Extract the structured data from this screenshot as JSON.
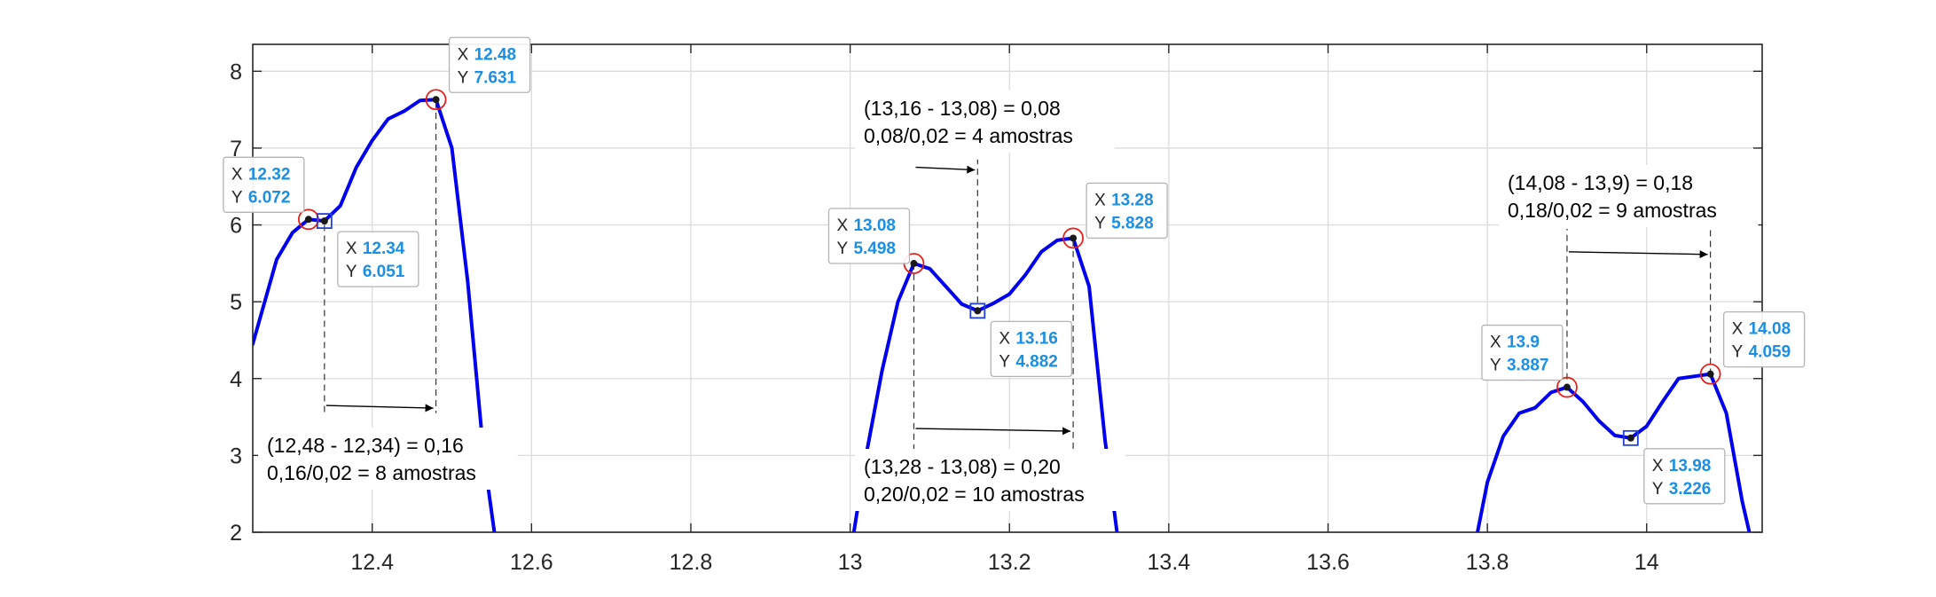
{
  "chart_data": {
    "type": "line",
    "title": "",
    "xlabel": "",
    "ylabel": "",
    "xlim": [
      12.25,
      14.145
    ],
    "ylim": [
      2,
      8.35
    ],
    "grid": true,
    "x_ticks": [
      12.4,
      12.6,
      12.8,
      13,
      13.2,
      13.4,
      13.6,
      13.8,
      14
    ],
    "x_tick_labels": [
      "12.4",
      "12.6",
      "12.8",
      "13",
      "13.2",
      "13.4",
      "13.6",
      "13.8",
      "14"
    ],
    "y_ticks": [
      2,
      3,
      4,
      5,
      6,
      7,
      8
    ],
    "y_tick_labels": [
      "2",
      "3",
      "4",
      "5",
      "6",
      "7",
      "8"
    ],
    "colors": {
      "line": "#0000ee",
      "peak_marker": "#e8201a",
      "valley_marker": "#1f3fd6",
      "tip_value": "#1a8fe3",
      "tip_border": "#b4b4b4",
      "axis": "#262626",
      "grid": "#dcdcdc"
    },
    "series": [
      {
        "segments": [
          [
            [
              12.25,
              4.45
            ],
            [
              12.28,
              5.55
            ],
            [
              12.3,
              5.9
            ],
            [
              12.32,
              6.072
            ],
            [
              12.34,
              6.051
            ],
            [
              12.36,
              6.25
            ],
            [
              12.38,
              6.75
            ],
            [
              12.4,
              7.1
            ],
            [
              12.42,
              7.38
            ],
            [
              12.44,
              7.48
            ],
            [
              12.46,
              7.62
            ],
            [
              12.48,
              7.631
            ],
            [
              12.5,
              7.0
            ],
            [
              12.52,
              5.25
            ],
            [
              12.54,
              3.0
            ],
            [
              12.56,
              1.5
            ]
          ],
          [
            [
              13.0,
              1.7
            ],
            [
              13.02,
              3.0
            ],
            [
              13.04,
              4.1
            ],
            [
              13.06,
              5.0
            ],
            [
              13.08,
              5.498
            ],
            [
              13.1,
              5.43
            ],
            [
              13.12,
              5.2
            ],
            [
              13.14,
              4.97
            ],
            [
              13.16,
              4.882
            ],
            [
              13.18,
              4.98
            ],
            [
              13.2,
              5.1
            ],
            [
              13.22,
              5.35
            ],
            [
              13.24,
              5.65
            ],
            [
              13.26,
              5.8
            ],
            [
              13.28,
              5.828
            ],
            [
              13.3,
              5.2
            ],
            [
              13.32,
              3.2
            ],
            [
              13.34,
              1.6
            ]
          ],
          [
            [
              13.78,
              1.6
            ],
            [
              13.8,
              2.65
            ],
            [
              13.82,
              3.25
            ],
            [
              13.84,
              3.55
            ],
            [
              13.86,
              3.62
            ],
            [
              13.88,
              3.82
            ],
            [
              13.9,
              3.887
            ],
            [
              13.92,
              3.7
            ],
            [
              13.94,
              3.45
            ],
            [
              13.96,
              3.26
            ],
            [
              13.98,
              3.226
            ],
            [
              14.0,
              3.38
            ],
            [
              14.02,
              3.7
            ],
            [
              14.04,
              4.0
            ],
            [
              14.06,
              4.03
            ],
            [
              14.08,
              4.059
            ],
            [
              14.1,
              3.55
            ],
            [
              14.12,
              2.4
            ],
            [
              14.14,
              1.5
            ]
          ]
        ]
      }
    ],
    "peaks": [
      {
        "x": 12.32,
        "y": 6.072,
        "label_x": "12.32",
        "label_y": "6.072"
      },
      {
        "x": 12.48,
        "y": 7.631,
        "label_x": "12.48",
        "label_y": "7.631"
      },
      {
        "x": 13.08,
        "y": 5.498,
        "label_x": "13.08",
        "label_y": "5.498"
      },
      {
        "x": 13.28,
        "y": 5.828,
        "label_x": "13.28",
        "label_y": "5.828"
      },
      {
        "x": 13.9,
        "y": 3.887,
        "label_x": "13.9",
        "label_y": "3.887"
      },
      {
        "x": 14.08,
        "y": 4.059,
        "label_x": "14.08",
        "label_y": "4.059"
      }
    ],
    "valleys": [
      {
        "x": 12.34,
        "y": 6.051,
        "label_x": "12.34",
        "label_y": "6.051"
      },
      {
        "x": 13.16,
        "y": 4.882,
        "label_x": "13.16",
        "label_y": "4.882"
      },
      {
        "x": 13.98,
        "y": 3.226,
        "label_x": "13.98",
        "label_y": "3.226"
      }
    ],
    "tip_prefix_x": "X",
    "tip_prefix_y": "Y",
    "annotations": [
      {
        "lines": [
          "(12,48 - 12,34) = 0,16",
          "0,16/0,02 = 8 amostras"
        ]
      },
      {
        "lines": [
          "(13,16 - 13,08) = 0,08",
          "0,08/0,02 = 4 amostras"
        ]
      },
      {
        "lines": [
          "(13,28 - 13,08) = 0,20",
          "0,20/0,02 = 10 amostras"
        ]
      },
      {
        "lines": [
          "(14,08 - 13,9) = 0,18",
          "0,18/0,02 = 9 amostras"
        ]
      }
    ]
  }
}
